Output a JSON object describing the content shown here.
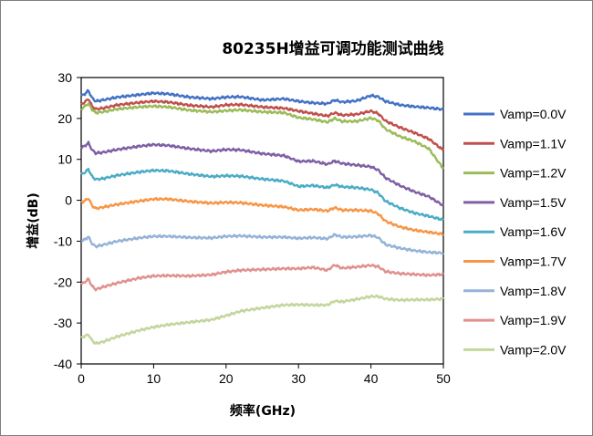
{
  "chart_data": {
    "type": "line",
    "title": "80235H增益可调功能测试曲线",
    "xlabel": "频率(GHz)",
    "ylabel": "增益(dB)",
    "xlim": [
      0,
      50
    ],
    "ylim": [
      -40,
      30
    ],
    "xticks": [
      "0",
      "10",
      "20",
      "30",
      "40",
      "50"
    ],
    "yticks": [
      "30",
      "20",
      "10",
      "0",
      "-10",
      "-20",
      "-30",
      "-40"
    ],
    "grid": false,
    "legend": "right",
    "x": [
      0,
      0.5,
      1,
      1.5,
      2,
      3,
      5,
      8,
      10,
      12,
      15,
      18,
      20,
      22,
      25,
      28,
      30,
      32,
      34,
      35,
      36,
      38,
      40,
      41,
      42,
      44,
      46,
      48,
      50
    ],
    "series": [
      {
        "name": "Vamp=0.0V",
        "color": "#4472c4",
        "values": [
          25.5,
          26,
          26.8,
          25,
          24.2,
          24.5,
          25.2,
          25.8,
          26.2,
          26,
          25.2,
          24.8,
          25.2,
          25.3,
          24.5,
          24.8,
          24.2,
          23.8,
          23.6,
          24.5,
          24,
          24.3,
          25.6,
          25.3,
          24.2,
          23.3,
          22.9,
          22.6,
          22.2
        ]
      },
      {
        "name": "Vamp=1.1V",
        "color": "#c0504d",
        "values": [
          23.5,
          24,
          24.8,
          23,
          22.3,
          22.5,
          23.3,
          23.9,
          24.2,
          24,
          23.2,
          22.8,
          23.3,
          23.4,
          22.8,
          22.5,
          21.8,
          21.2,
          20.6,
          21.4,
          20.8,
          21,
          21.8,
          21.2,
          19.4,
          17.8,
          16.5,
          15,
          12.2
        ]
      },
      {
        "name": "Vamp=1.2V",
        "color": "#9bbb59",
        "values": [
          22.3,
          23,
          23.6,
          22.2,
          21.4,
          21.6,
          22.3,
          22.8,
          23,
          22.8,
          22,
          21.6,
          21.9,
          22.1,
          21.6,
          21.4,
          20.2,
          19.8,
          19.1,
          20,
          19.3,
          19.3,
          20.1,
          19.5,
          17.4,
          15.6,
          14.4,
          12.6,
          7.7
        ]
      },
      {
        "name": "Vamp=1.5V",
        "color": "#7f5fa5",
        "values": [
          12.8,
          13.3,
          14,
          12.3,
          11.5,
          11.7,
          12.4,
          13.2,
          13.6,
          13.4,
          12.6,
          12,
          12.4,
          12.3,
          11.4,
          10.9,
          9.5,
          9.6,
          8.8,
          9.6,
          9,
          8.6,
          8.2,
          7.4,
          5.5,
          3.6,
          2.1,
          0.9,
          -1.3
        ]
      },
      {
        "name": "Vamp=1.6V",
        "color": "#4bacc6",
        "values": [
          6.3,
          6.8,
          7.6,
          5.8,
          5.1,
          5.3,
          6.1,
          6.9,
          7.3,
          7.2,
          6.4,
          5.8,
          6,
          5.9,
          5.2,
          4.7,
          3.4,
          3.6,
          3.1,
          3.8,
          3.3,
          3.1,
          2.6,
          1.8,
          -0.2,
          -1.9,
          -3.1,
          -3.9,
          -4.8
        ]
      },
      {
        "name": "Vamp=1.7V",
        "color": "#f79646",
        "values": [
          -0.5,
          -0.1,
          0.5,
          -1.3,
          -2,
          -1.7,
          -1,
          -0.2,
          0.3,
          0.3,
          -0.3,
          -0.7,
          -0.5,
          -0.6,
          -1.2,
          -1.6,
          -2.4,
          -2.2,
          -2.6,
          -1.8,
          -2.4,
          -2.4,
          -2.6,
          -3.3,
          -5.1,
          -6.5,
          -7.3,
          -7.8,
          -8.3
        ]
      },
      {
        "name": "Vamp=1.8V",
        "color": "#95b3d7",
        "values": [
          -10,
          -9.6,
          -8.9,
          -10.6,
          -11.3,
          -10.9,
          -10,
          -9.2,
          -8.8,
          -8.8,
          -9.1,
          -9.2,
          -8.8,
          -8.7,
          -9,
          -9,
          -9.3,
          -9.1,
          -9.4,
          -8.4,
          -9,
          -8.9,
          -8.6,
          -9.1,
          -10.8,
          -11.7,
          -12.3,
          -12.7,
          -12.9
        ]
      },
      {
        "name": "Vamp=1.9V",
        "color": "#e0918d",
        "values": [
          -20.5,
          -20,
          -19.2,
          -21,
          -21.8,
          -21.2,
          -20.2,
          -19,
          -18.5,
          -18.4,
          -18.5,
          -18.2,
          -17.5,
          -17.1,
          -16.9,
          -16.7,
          -16.7,
          -16.4,
          -17.1,
          -15.8,
          -16.6,
          -16.3,
          -15.9,
          -16.2,
          -17.4,
          -17.9,
          -18.1,
          -18.3,
          -18.1
        ]
      },
      {
        "name": "Vamp=2.0V",
        "color": "#c3d69b",
        "values": [
          -33.5,
          -33.2,
          -32.8,
          -34.3,
          -35,
          -34.6,
          -33.3,
          -31.8,
          -31,
          -30.4,
          -29.8,
          -29.2,
          -28.2,
          -27.1,
          -26.3,
          -25.6,
          -25.5,
          -25.6,
          -25.6,
          -24.6,
          -24.8,
          -24.2,
          -23.5,
          -23.5,
          -24.1,
          -24.4,
          -24.3,
          -24.3,
          -24.1
        ]
      }
    ]
  }
}
